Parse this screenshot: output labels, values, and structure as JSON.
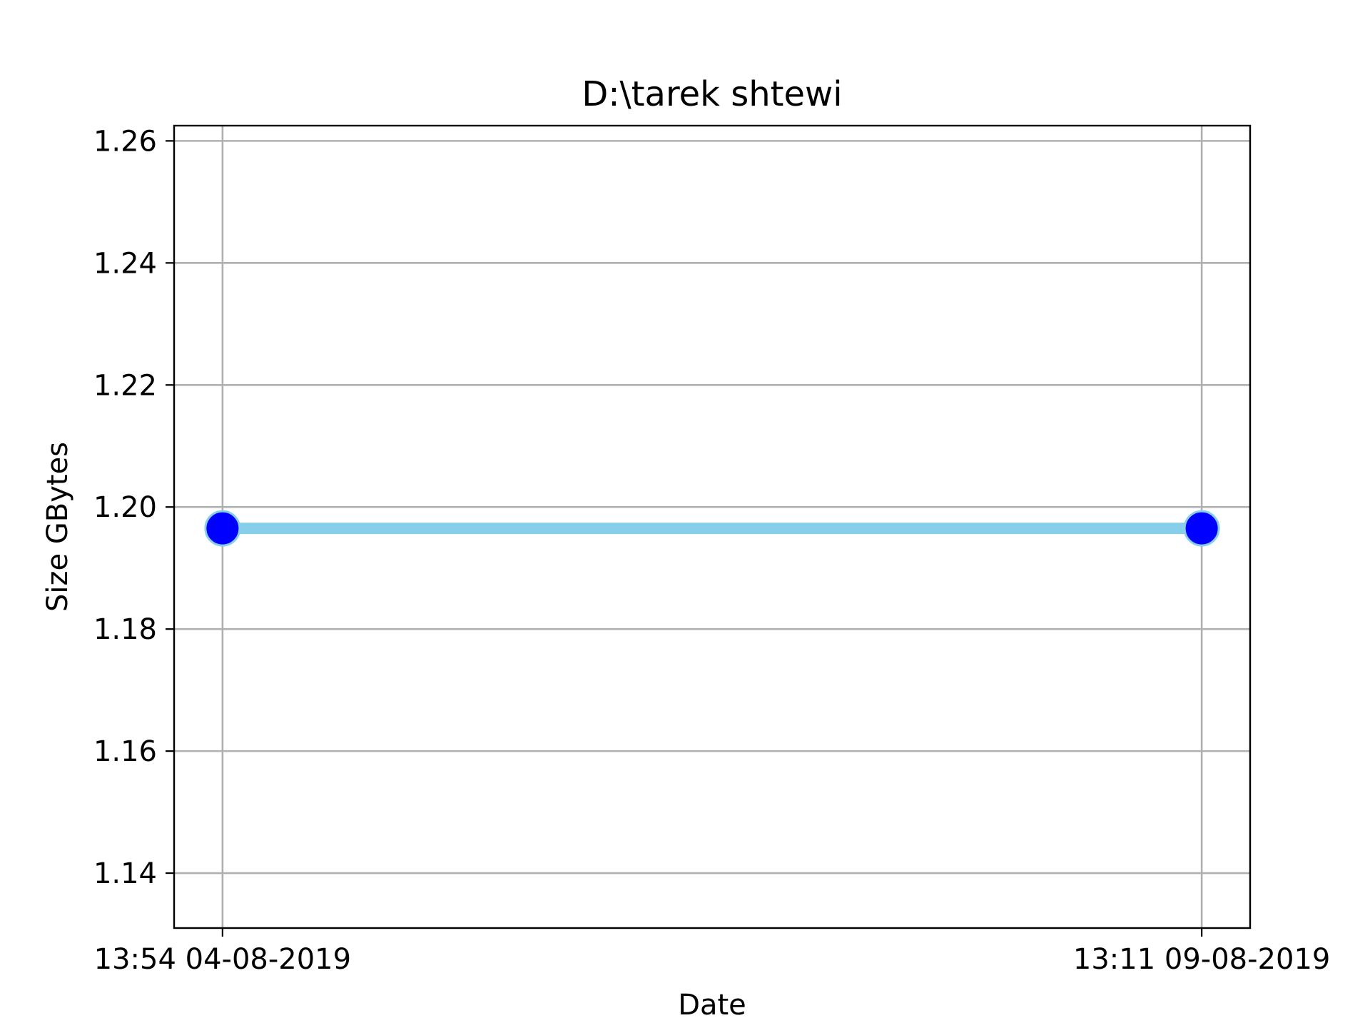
{
  "chart_data": {
    "type": "line",
    "title": "D:\\tarek shtewi",
    "xlabel": "Date",
    "ylabel": "Size GBytes",
    "x": [
      "13:54 04-08-2019",
      "13:11 09-08-2019"
    ],
    "series": [
      {
        "values": [
          1.1965,
          1.1965
        ],
        "line_color": "#87CEEB",
        "marker_color": "#0000FF"
      }
    ],
    "ylim": [
      1.131,
      1.2625
    ],
    "yticks": [
      1.14,
      1.16,
      1.18,
      1.2,
      1.22,
      1.24,
      1.26
    ],
    "ytick_labels": [
      "1.14",
      "1.16",
      "1.18",
      "1.20",
      "1.22",
      "1.24",
      "1.26"
    ],
    "grid": true,
    "grid_color": "#b0b0b0"
  }
}
